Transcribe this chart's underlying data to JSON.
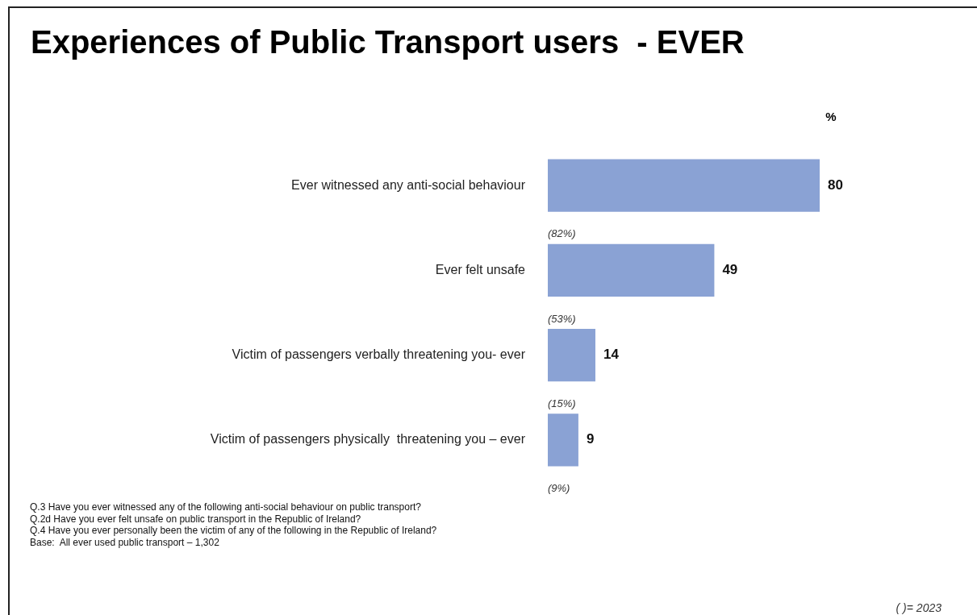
{
  "chart_data": {
    "type": "bar",
    "orientation": "horizontal",
    "title": "Experiences of Public Transport users  - EVER",
    "xlabel": "%",
    "categories": [
      "Ever witnessed any anti-social behaviour",
      "Ever felt unsafe",
      "Victim of passengers verbally threatening you- ever",
      "Victim of passengers physically  threatening you – ever"
    ],
    "values": [
      80,
      49,
      14,
      9
    ],
    "color": "#8aa2d4",
    "xlim": [
      0,
      80
    ],
    "data_labels": true,
    "legend": false,
    "annotations": [
      "(82%)",
      "(53%)",
      "(15%)",
      "(9%)",
      "Q.3 Have you ever witnessed any of the following anti-social behaviour on public transport?",
      "Q.2d Have you ever felt unsafe on public transport in the Republic of Ireland?",
      "Q.4 Have you ever personally been the victim of any of the following in the Republic of Ireland?",
      "Base:  All ever used public transport – 1,302",
      "( )= 2023"
    ]
  }
}
